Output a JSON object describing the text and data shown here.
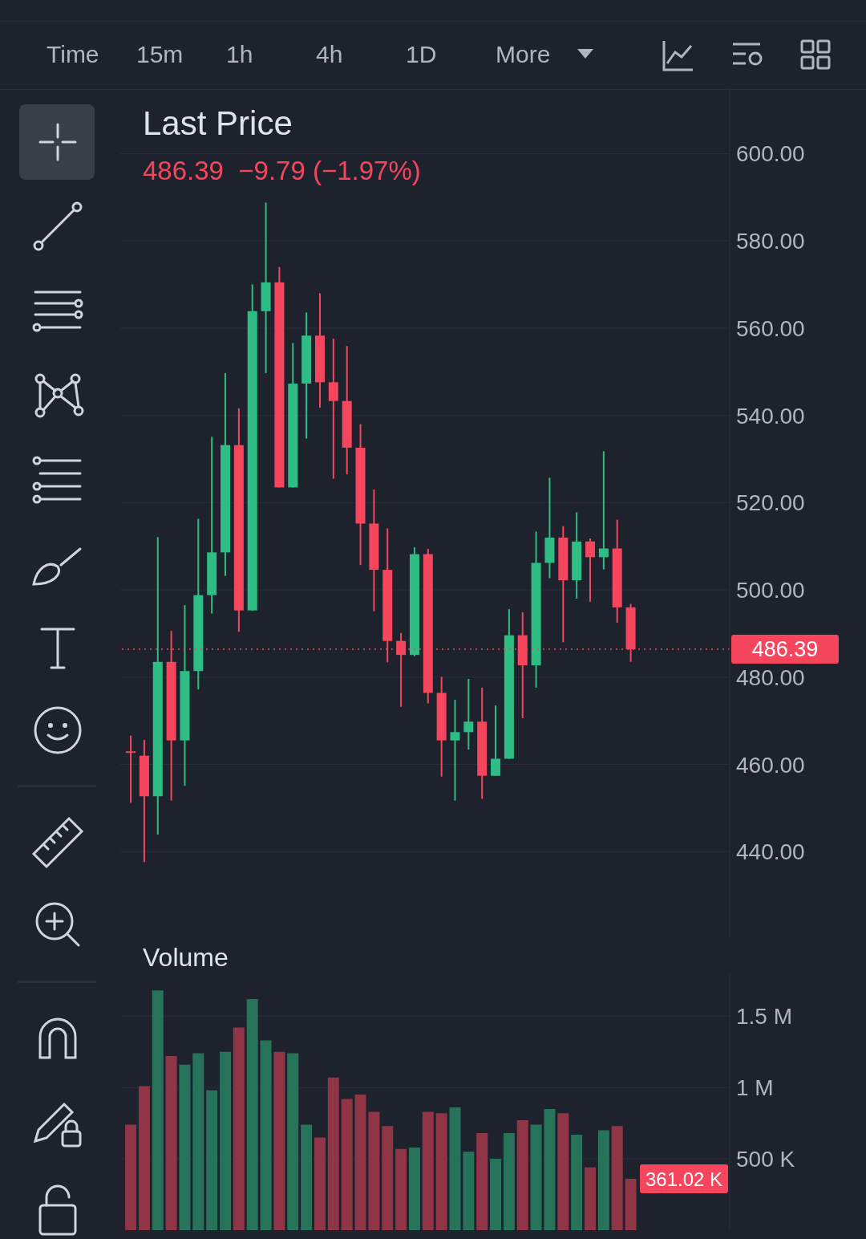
{
  "chart_data": [
    {
      "type": "candlestick",
      "title": "Last Price",
      "subtitle": "486.39  −9.79 (−1.97%)",
      "annotations": [
        "Time",
        "15m",
        "1h",
        "4h",
        "1D",
        "More"
      ],
      "categories": [
        null,
        null,
        null,
        null,
        null,
        null,
        null,
        null,
        null,
        null,
        null,
        null,
        null,
        null,
        null,
        null,
        null,
        null,
        null,
        null,
        null,
        null,
        null,
        null,
        null,
        null,
        null,
        null,
        null,
        null,
        null,
        null,
        null,
        null,
        null,
        null,
        null,
        null
      ],
      "ohlc": [
        [
          463.0,
          466.6,
          451.2,
          462.7
        ],
        [
          462.0,
          465.6,
          437.6,
          452.7
        ],
        [
          452.7,
          512.1,
          443.9,
          483.5
        ],
        [
          483.5,
          490.6,
          451.7,
          465.5
        ],
        [
          465.5,
          496.5,
          455.1,
          481.4
        ],
        [
          481.4,
          516.3,
          477.2,
          498.8
        ],
        [
          498.8,
          535.1,
          494.6,
          508.6
        ],
        [
          508.6,
          549.7,
          503.2,
          533.2
        ],
        [
          533.2,
          541.6,
          490.4,
          495.3
        ],
        [
          495.3,
          570.0,
          495.3,
          563.9
        ],
        [
          563.9,
          588.8,
          549.7,
          570.5
        ],
        [
          570.5,
          574.0,
          523.5,
          523.5
        ],
        [
          523.5,
          556.6,
          523.5,
          547.3
        ],
        [
          547.3,
          563.6,
          534.7,
          558.3
        ],
        [
          558.3,
          568.0,
          541.8,
          547.6
        ],
        [
          547.6,
          557.6,
          525.5,
          543.3
        ],
        [
          543.3,
          555.9,
          526.5,
          532.6
        ],
        [
          532.6,
          538.0,
          505.7,
          515.2
        ],
        [
          515.2,
          523.0,
          495.1,
          504.6
        ],
        [
          504.6,
          514.1,
          483.4,
          488.3
        ],
        [
          488.3,
          490.1,
          473.2,
          485.1
        ],
        [
          485.1,
          509.8,
          484.8,
          508.2
        ],
        [
          508.2,
          509.4,
          474.0,
          476.4
        ],
        [
          476.4,
          480.1,
          457.2,
          465.5
        ],
        [
          465.5,
          474.8,
          451.7,
          467.4
        ],
        [
          467.4,
          479.6,
          463.4,
          469.8
        ],
        [
          469.8,
          477.6,
          452.1,
          457.4
        ],
        [
          457.4,
          473.5,
          457.4,
          461.3
        ],
        [
          461.3,
          495.6,
          461.3,
          489.6
        ],
        [
          489.6,
          494.9,
          470.6,
          482.7
        ],
        [
          482.7,
          513.4,
          477.6,
          506.2
        ],
        [
          506.2,
          525.7,
          502.7,
          512.0
        ],
        [
          512.0,
          514.6,
          488.0,
          502.2
        ],
        [
          502.2,
          517.8,
          498.0,
          511.1
        ],
        [
          511.1,
          511.8,
          497.3,
          507.5
        ],
        [
          507.5,
          531.8,
          504.7,
          509.5
        ],
        [
          509.5,
          516.1,
          492.5,
          496.0
        ],
        [
          496.0,
          496.8,
          483.5,
          486.39
        ]
      ],
      "colors": [
        "#f6465d",
        "#f6465d",
        "#2ebd85",
        "#f6465d",
        "#2ebd85",
        "#2ebd85",
        "#2ebd85",
        "#2ebd85",
        "#f6465d",
        "#2ebd85",
        "#2ebd85",
        "#f6465d",
        "#2ebd85",
        "#2ebd85",
        "#f6465d",
        "#f6465d",
        "#f6465d",
        "#f6465d",
        "#f6465d",
        "#f6465d",
        "#f6465d",
        "#2ebd85",
        "#f6465d",
        "#f6465d",
        "#2ebd85",
        "#2ebd85",
        "#f6465d",
        "#2ebd85",
        "#2ebd85",
        "#f6465d",
        "#2ebd85",
        "#2ebd85",
        "#f6465d",
        "#2ebd85",
        "#f6465d",
        "#2ebd85",
        "#f6465d",
        "#f6465d"
      ],
      "ylim": [
        420,
        615
      ],
      "yticks": [
        {
          "value": 440,
          "label": "440.00"
        },
        {
          "value": 460,
          "label": "460.00"
        },
        {
          "value": 480,
          "label": "480.00"
        },
        {
          "value": 500,
          "label": "500.00"
        },
        {
          "value": 520,
          "label": "520.00"
        },
        {
          "value": 540,
          "label": "540.00"
        },
        {
          "value": 560,
          "label": "560.00"
        },
        {
          "value": 580,
          "label": "580.00"
        },
        {
          "value": 600,
          "label": "600.00"
        }
      ],
      "ref_lines": [
        {
          "axis": "y",
          "value": 486.39,
          "label": "486.39",
          "color": "#f6465d",
          "line_style": "dotted"
        }
      ],
      "grid": "y",
      "tick_labels": "y"
    },
    {
      "type": "bar",
      "title": "Volume",
      "categories": [
        null,
        null,
        null,
        null,
        null,
        null,
        null,
        null,
        null,
        null,
        null,
        null,
        null,
        null,
        null,
        null,
        null,
        null,
        null,
        null,
        null,
        null,
        null,
        null,
        null,
        null,
        null,
        null,
        null,
        null,
        null,
        null,
        null,
        null,
        null,
        null,
        null,
        null
      ],
      "values": [
        0.74,
        1.01,
        1.68,
        1.22,
        1.16,
        1.24,
        0.98,
        1.25,
        1.42,
        1.62,
        1.33,
        1.25,
        1.24,
        0.74,
        0.65,
        1.07,
        0.92,
        0.95,
        0.83,
        0.73,
        0.57,
        0.58,
        0.83,
        0.82,
        0.86,
        0.55,
        0.68,
        0.5,
        0.68,
        0.77,
        0.74,
        0.85,
        0.82,
        0.67,
        0.44,
        0.7,
        0.73,
        0.36
      ],
      "colors": [
        "#8f3546",
        "#8f3546",
        "#26735a",
        "#8f3546",
        "#26735a",
        "#26735a",
        "#26735a",
        "#26735a",
        "#8f3546",
        "#26735a",
        "#26735a",
        "#8f3546",
        "#26735a",
        "#26735a",
        "#8f3546",
        "#8f3546",
        "#8f3546",
        "#8f3546",
        "#8f3546",
        "#8f3546",
        "#8f3546",
        "#26735a",
        "#8f3546",
        "#8f3546",
        "#26735a",
        "#26735a",
        "#8f3546",
        "#26735a",
        "#26735a",
        "#8f3546",
        "#26735a",
        "#26735a",
        "#8f3546",
        "#26735a",
        "#8f3546",
        "#26735a",
        "#8f3546",
        "#8f3546"
      ],
      "annotations": [
        "361.02 K"
      ],
      "ylim": [
        0,
        1.8
      ],
      "yticks": [
        {
          "value": 0.5,
          "label": "500 K"
        },
        {
          "value": 1,
          "label": "1 M"
        },
        {
          "value": 1.5,
          "label": "1.5 M"
        }
      ],
      "grid": "y",
      "tick_labels": "y"
    }
  ]
}
